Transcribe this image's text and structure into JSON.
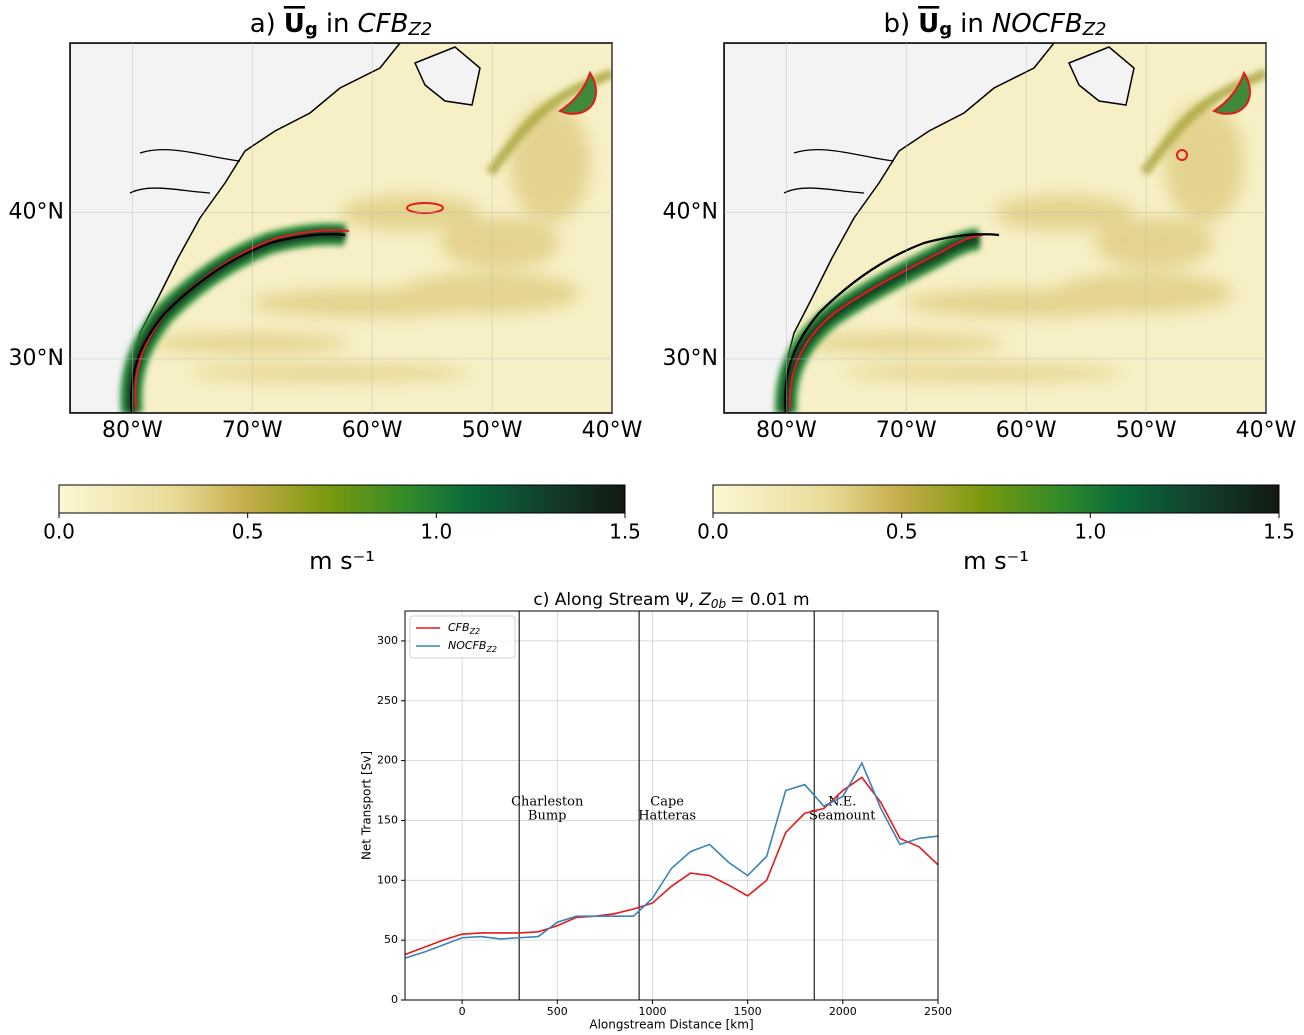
{
  "chart_data": [
    {
      "type": "map",
      "title": {
        "label": "a)",
        "var": "U",
        "var_sub": "g",
        "word": "in",
        "run": "CFB",
        "run_sub": "Z2"
      },
      "xlim": [
        -85.2,
        -40
      ],
      "ylim": [
        26.3,
        51.6
      ],
      "xticks": [
        {
          "value": -80,
          "label": "80°W"
        },
        {
          "value": -70,
          "label": "70°W"
        },
        {
          "value": -60,
          "label": "60°W"
        },
        {
          "value": -50,
          "label": "50°W"
        },
        {
          "value": -40,
          "label": "40°W"
        }
      ],
      "yticks": [
        {
          "value": 30,
          "label": "30°N"
        },
        {
          "value": 40,
          "label": "40°N"
        }
      ],
      "grid": true,
      "colorbar": {
        "lim": [
          0,
          1.5
        ],
        "ticks": [
          {
            "value": 0,
            "label": "0.0"
          },
          0.5,
          {
            "value": 1,
            "label": "1.0"
          },
          1.5
        ],
        "unit": "m s⁻¹"
      }
    },
    {
      "type": "map",
      "title": {
        "label": "b)",
        "var": "U",
        "var_sub": "g",
        "word": "in",
        "run": "NOCFB",
        "run_sub": "Z2"
      },
      "xlim": [
        -85.2,
        -40
      ],
      "ylim": [
        26.3,
        51.6
      ],
      "xticks": [
        {
          "value": -80,
          "label": "80°W"
        },
        {
          "value": -70,
          "label": "70°W"
        },
        {
          "value": -60,
          "label": "60°W"
        },
        {
          "value": -50,
          "label": "50°W"
        },
        {
          "value": -40,
          "label": "40°W"
        }
      ],
      "yticks": [
        {
          "value": 30,
          "label": "30°N"
        },
        {
          "value": 40,
          "label": "40°N"
        }
      ],
      "grid": true,
      "colorbar": {
        "lim": [
          0,
          1.5
        ],
        "ticks": [
          {
            "value": 0,
            "label": "0.0"
          },
          0.5,
          {
            "value": 1,
            "label": "1.0"
          },
          1.5
        ],
        "unit": "m s⁻¹"
      }
    },
    {
      "type": "line",
      "title": {
        "label": "c) Along Stream Ψ,",
        "var": "Z",
        "var_sub": "0b",
        "rest": "= 0.01 m"
      },
      "x_label": "Alongstream Distance [km]",
      "y_label": "Net Transport [Sv]",
      "xlim": [
        -300,
        2500
      ],
      "ylim": [
        0,
        325
      ],
      "xticks": [
        0,
        500,
        1000,
        1500,
        2000,
        2500
      ],
      "yticks": [
        0,
        50,
        100,
        150,
        200,
        250,
        300
      ],
      "grid": true,
      "legend": "upper left",
      "x": [
        -300,
        -200,
        -100,
        0,
        100,
        200,
        300,
        400,
        500,
        600,
        700,
        800,
        900,
        1000,
        1100,
        1200,
        1300,
        1400,
        1500,
        1600,
        1700,
        1800,
        1900,
        2000,
        2100,
        2200,
        2300,
        2400,
        2500
      ],
      "series": [
        {
          "name": "CFB",
          "name_sub": "Z2",
          "color": "#e41a1c",
          "values": [
            38,
            44,
            50,
            55,
            56,
            56,
            56,
            57,
            62,
            69,
            70,
            72,
            76,
            81,
            95,
            106,
            104,
            96,
            87,
            100,
            140,
            156,
            160,
            175,
            186,
            165,
            135,
            128,
            113
          ]
        },
        {
          "name": "NOCFB",
          "name_sub": "Z2",
          "color": "#3a84b8",
          "values": [
            35,
            40,
            46,
            52,
            53,
            51,
            52,
            53,
            65,
            70,
            70,
            70,
            70,
            85,
            110,
            124,
            130,
            115,
            104,
            120,
            175,
            180,
            162,
            170,
            198,
            160,
            130,
            135,
            137
          ]
        }
      ],
      "vlines": [
        300,
        930,
        1850
      ],
      "annotations": [
        [
          "Charleston",
          "Bump"
        ],
        [
          "Cape",
          "Hatteras"
        ],
        [
          "N.E.",
          "Seamount"
        ]
      ]
    }
  ]
}
